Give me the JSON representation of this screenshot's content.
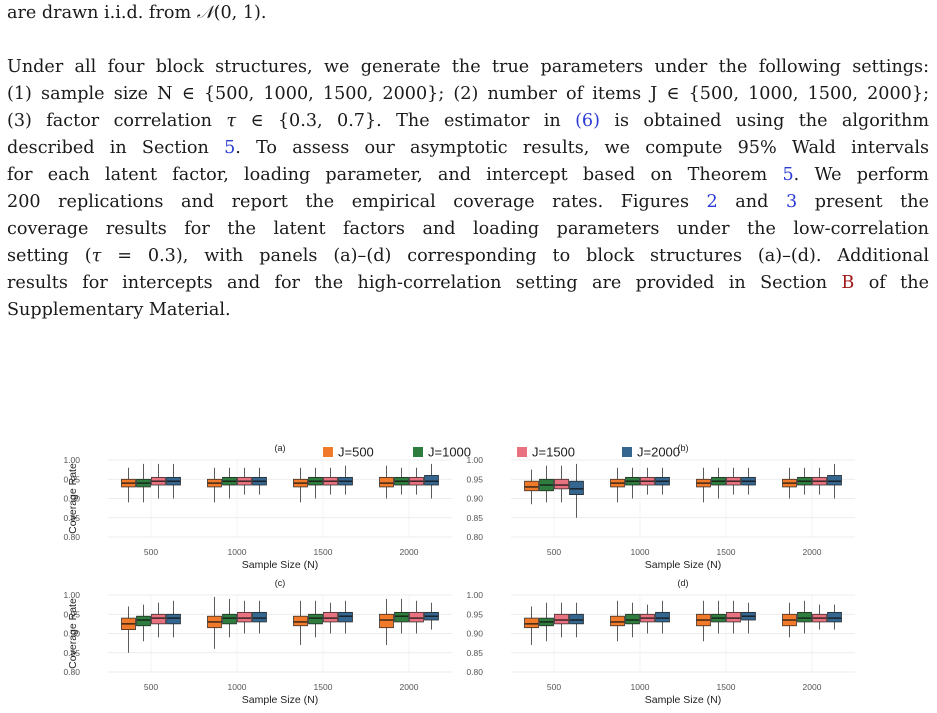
{
  "paragraphs": [
    [
      "are drawn i.i.d. from 𝒩(0, 1)."
    ],
    [
      "Under all four block structures, we generate the true parameters under the following settings:",
      "(1) sample size N ∈ {500, 1000, 1500, 2000}; (2) number of items J ∈ {500, 1000, 1500, 2000};",
      "(3) factor correlation τ ∈ {0.3, 0.7}.  The estimator in (6) is obtained using the algorithm",
      "described in Section 5. To assess our asymptotic results, we compute 95% Wald intervals",
      "for each latent factor, loading parameter, and intercept based on Theorem 5. We perform",
      "200 replications and report the empirical coverage rates.  Figures 2 and 3 present the",
      "coverage results for the latent factors and loading parameters under the low-correlation",
      "setting (τ = 0.3), with panels (a)–(d) corresponding to block structures (a)–(d). Additional",
      "results for intercepts and for the high-correlation setting are provided in Section B of the",
      "Supplementary Material."
    ]
  ],
  "refs": {
    "eq": "(6)",
    "section": "5",
    "theorem": "5",
    "fig2": "2",
    "fig3": "3",
    "sec_b": "B"
  },
  "chart_data": {
    "type": "box",
    "legend": [
      {
        "name": "J=500",
        "color": "#F07A2A"
      },
      {
        "name": "J=1000",
        "color": "#2E7D3E"
      },
      {
        "name": "J=1500",
        "color": "#E8727F"
      },
      {
        "name": "J=2000",
        "color": "#34668F"
      }
    ],
    "legend_position": "top",
    "xlabel": "Sample Size (N)",
    "ylabel": "Coverage Rate",
    "categories": [
      "500",
      "1000",
      "1500",
      "2000"
    ],
    "ylim": [
      0.8,
      1.0
    ],
    "yticks": [
      "0.80",
      "0.85",
      "0.90",
      "0.95",
      "1.00"
    ],
    "panels": [
      {
        "label": "(a)",
        "boxes": [
          [
            [
              0.89,
              0.93,
              0.94,
              0.95,
              0.98
            ],
            [
              0.89,
              0.93,
              0.94,
              0.95,
              0.99
            ],
            [
              0.9,
              0.935,
              0.945,
              0.955,
              0.99
            ],
            [
              0.9,
              0.935,
              0.945,
              0.955,
              0.99
            ]
          ],
          [
            [
              0.89,
              0.93,
              0.94,
              0.95,
              0.98
            ],
            [
              0.9,
              0.935,
              0.945,
              0.955,
              0.98
            ],
            [
              0.91,
              0.935,
              0.945,
              0.955,
              0.98
            ],
            [
              0.91,
              0.935,
              0.945,
              0.955,
              0.98
            ]
          ],
          [
            [
              0.89,
              0.93,
              0.94,
              0.95,
              0.98
            ],
            [
              0.9,
              0.935,
              0.945,
              0.955,
              0.98
            ],
            [
              0.91,
              0.935,
              0.945,
              0.955,
              0.98
            ],
            [
              0.91,
              0.935,
              0.945,
              0.955,
              0.985
            ]
          ],
          [
            [
              0.9,
              0.93,
              0.94,
              0.955,
              0.985
            ],
            [
              0.91,
              0.935,
              0.945,
              0.955,
              0.98
            ],
            [
              0.91,
              0.935,
              0.945,
              0.955,
              0.98
            ],
            [
              0.9,
              0.935,
              0.945,
              0.96,
              0.99
            ]
          ]
        ]
      },
      {
        "label": "(b)",
        "boxes": [
          [
            [
              0.885,
              0.92,
              0.93,
              0.945,
              0.975
            ],
            [
              0.89,
              0.92,
              0.935,
              0.95,
              0.985
            ],
            [
              0.89,
              0.925,
              0.935,
              0.95,
              0.985
            ],
            [
              0.85,
              0.91,
              0.925,
              0.945,
              0.99
            ]
          ],
          [
            [
              0.89,
              0.93,
              0.94,
              0.95,
              0.98
            ],
            [
              0.9,
              0.935,
              0.945,
              0.955,
              0.98
            ],
            [
              0.91,
              0.935,
              0.945,
              0.955,
              0.98
            ],
            [
              0.91,
              0.935,
              0.945,
              0.955,
              0.98
            ]
          ],
          [
            [
              0.89,
              0.93,
              0.94,
              0.95,
              0.98
            ],
            [
              0.9,
              0.935,
              0.945,
              0.955,
              0.98
            ],
            [
              0.91,
              0.935,
              0.945,
              0.955,
              0.98
            ],
            [
              0.91,
              0.935,
              0.945,
              0.955,
              0.98
            ]
          ],
          [
            [
              0.9,
              0.93,
              0.94,
              0.95,
              0.98
            ],
            [
              0.91,
              0.935,
              0.945,
              0.955,
              0.98
            ],
            [
              0.91,
              0.935,
              0.945,
              0.955,
              0.98
            ],
            [
              0.9,
              0.935,
              0.945,
              0.96,
              0.99
            ]
          ]
        ]
      },
      {
        "label": "(c)",
        "boxes": [
          [
            [
              0.85,
              0.91,
              0.925,
              0.94,
              0.97
            ],
            [
              0.88,
              0.92,
              0.935,
              0.945,
              0.975
            ],
            [
              0.89,
              0.925,
              0.94,
              0.95,
              0.98
            ],
            [
              0.89,
              0.925,
              0.94,
              0.95,
              0.985
            ]
          ],
          [
            [
              0.86,
              0.915,
              0.93,
              0.945,
              0.995
            ],
            [
              0.89,
              0.925,
              0.94,
              0.95,
              0.99
            ],
            [
              0.9,
              0.93,
              0.94,
              0.955,
              0.985
            ],
            [
              0.9,
              0.93,
              0.94,
              0.955,
              0.985
            ]
          ],
          [
            [
              0.87,
              0.92,
              0.93,
              0.945,
              0.985
            ],
            [
              0.89,
              0.925,
              0.94,
              0.95,
              0.985
            ],
            [
              0.9,
              0.93,
              0.94,
              0.955,
              0.98
            ],
            [
              0.9,
              0.93,
              0.945,
              0.955,
              0.985
            ]
          ],
          [
            [
              0.87,
              0.915,
              0.935,
              0.95,
              0.99
            ],
            [
              0.9,
              0.93,
              0.945,
              0.955,
              0.99
            ],
            [
              0.9,
              0.93,
              0.94,
              0.955,
              0.985
            ],
            [
              0.91,
              0.935,
              0.945,
              0.955,
              0.98
            ]
          ]
        ]
      },
      {
        "label": "(d)",
        "boxes": [
          [
            [
              0.87,
              0.915,
              0.925,
              0.94,
              0.97
            ],
            [
              0.88,
              0.92,
              0.93,
              0.94,
              0.98
            ],
            [
              0.89,
              0.925,
              0.935,
              0.95,
              0.98
            ],
            [
              0.89,
              0.925,
              0.935,
              0.95,
              0.98
            ]
          ],
          [
            [
              0.88,
              0.92,
              0.93,
              0.945,
              0.985
            ],
            [
              0.89,
              0.925,
              0.935,
              0.95,
              0.98
            ],
            [
              0.9,
              0.93,
              0.94,
              0.95,
              0.975
            ],
            [
              0.9,
              0.93,
              0.94,
              0.955,
              0.985
            ]
          ],
          [
            [
              0.88,
              0.92,
              0.935,
              0.95,
              0.985
            ],
            [
              0.9,
              0.93,
              0.94,
              0.95,
              0.985
            ],
            [
              0.9,
              0.93,
              0.94,
              0.955,
              0.985
            ],
            [
              0.9,
              0.935,
              0.945,
              0.955,
              0.98
            ]
          ],
          [
            [
              0.89,
              0.92,
              0.935,
              0.95,
              0.98
            ],
            [
              0.9,
              0.93,
              0.94,
              0.955,
              0.985
            ],
            [
              0.91,
              0.93,
              0.94,
              0.95,
              0.975
            ],
            [
              0.91,
              0.93,
              0.94,
              0.955,
              0.975
            ]
          ]
        ]
      }
    ]
  }
}
